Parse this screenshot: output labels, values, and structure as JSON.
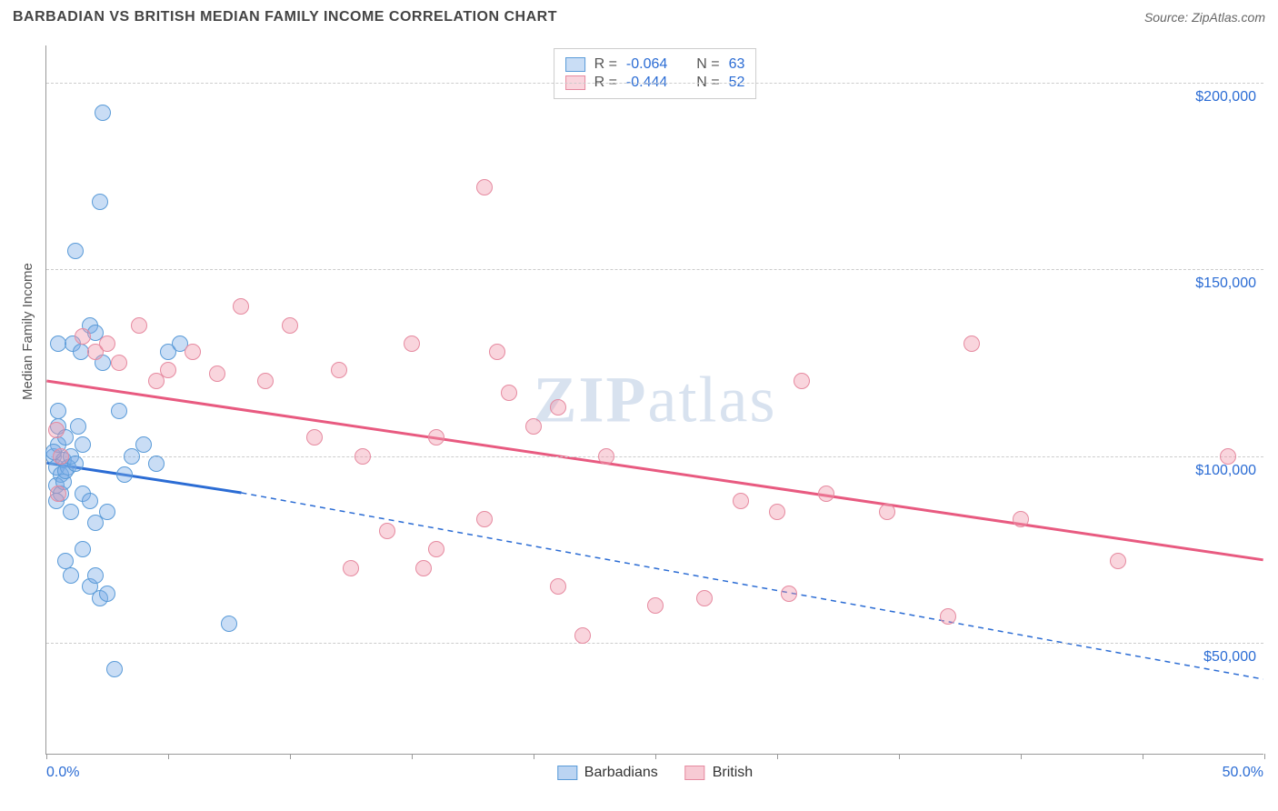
{
  "header": {
    "title": "BARBADIAN VS BRITISH MEDIAN FAMILY INCOME CORRELATION CHART",
    "source_label": "Source: ",
    "source_value": "ZipAtlas.com"
  },
  "watermark": {
    "zip": "ZIP",
    "atlas": "atlas"
  },
  "chart": {
    "type": "scatter",
    "ylabel": "Median Family Income",
    "xlim": [
      0,
      50
    ],
    "ylim": [
      20000,
      210000
    ],
    "x_start_label": "0.0%",
    "x_end_label": "50.0%",
    "yticks": [
      50000,
      100000,
      150000,
      200000
    ],
    "ytick_labels": [
      "$50,000",
      "$100,000",
      "$150,000",
      "$200,000"
    ],
    "xticks": [
      0,
      5,
      10,
      15,
      20,
      25,
      30,
      35,
      40,
      45,
      50
    ],
    "grid_color": "#cccccc",
    "background_color": "#ffffff",
    "axis_color": "#999999",
    "tick_label_color": "#2b6cd4",
    "marker_radius": 9,
    "series": [
      {
        "name": "Barbadians",
        "fill": "rgba(120,170,230,0.4)",
        "stroke": "#5a9bd8",
        "trend": {
          "x1": 0,
          "y1": 98000,
          "x2_solid": 8,
          "y2_solid": 90000,
          "x2": 50,
          "y2": 40000,
          "color": "#2b6cd4",
          "dash": "6,5",
          "width": 3
        },
        "stats": {
          "R": "-0.064",
          "N": "63"
        },
        "points": [
          [
            0.3,
            100000
          ],
          [
            0.4,
            97000
          ],
          [
            0.5,
            103000
          ],
          [
            0.6,
            95000
          ],
          [
            0.5,
            108000
          ],
          [
            0.4,
            92000
          ],
          [
            0.7,
            99000
          ],
          [
            0.8,
            105000
          ],
          [
            0.6,
            90000
          ],
          [
            0.5,
            112000
          ],
          [
            0.9,
            97000
          ],
          [
            0.4,
            88000
          ],
          [
            0.7,
            93000
          ],
          [
            0.3,
            101000
          ],
          [
            0.8,
            96000
          ],
          [
            1.0,
            100000
          ],
          [
            1.2,
            98000
          ],
          [
            1.5,
            103000
          ],
          [
            1.3,
            108000
          ],
          [
            1.1,
            130000
          ],
          [
            1.4,
            128000
          ],
          [
            1.8,
            135000
          ],
          [
            2.0,
            133000
          ],
          [
            2.2,
            168000
          ],
          [
            2.3,
            192000
          ],
          [
            2.3,
            125000
          ],
          [
            1.2,
            155000
          ],
          [
            1.5,
            90000
          ],
          [
            1.0,
            85000
          ],
          [
            1.8,
            88000
          ],
          [
            2.0,
            82000
          ],
          [
            2.5,
            85000
          ],
          [
            1.5,
            75000
          ],
          [
            1.0,
            68000
          ],
          [
            0.8,
            72000
          ],
          [
            1.8,
            65000
          ],
          [
            2.0,
            68000
          ],
          [
            2.2,
            62000
          ],
          [
            2.5,
            63000
          ],
          [
            0.5,
            130000
          ],
          [
            3.2,
            95000
          ],
          [
            3.5,
            100000
          ],
          [
            4.0,
            103000
          ],
          [
            4.5,
            98000
          ],
          [
            5.0,
            128000
          ],
          [
            5.5,
            130000
          ],
          [
            2.8,
            43000
          ],
          [
            7.5,
            55000
          ],
          [
            3.0,
            112000
          ]
        ]
      },
      {
        "name": "British",
        "fill": "rgba(240,150,170,0.4)",
        "stroke": "#e68aa0",
        "trend": {
          "x1": 0,
          "y1": 120000,
          "x2": 50,
          "y2": 72000,
          "color": "#e85a80",
          "width": 3
        },
        "stats": {
          "R": "-0.444",
          "N": "52"
        },
        "points": [
          [
            0.4,
            107000
          ],
          [
            0.5,
            90000
          ],
          [
            0.6,
            100000
          ],
          [
            1.5,
            132000
          ],
          [
            2.0,
            128000
          ],
          [
            2.5,
            130000
          ],
          [
            3.0,
            125000
          ],
          [
            3.8,
            135000
          ],
          [
            4.5,
            120000
          ],
          [
            5.0,
            123000
          ],
          [
            6.0,
            128000
          ],
          [
            7.0,
            122000
          ],
          [
            8.0,
            140000
          ],
          [
            9.0,
            120000
          ],
          [
            10.0,
            135000
          ],
          [
            11.0,
            105000
          ],
          [
            12.0,
            123000
          ],
          [
            13.0,
            100000
          ],
          [
            15.0,
            130000
          ],
          [
            16.0,
            105000
          ],
          [
            18.0,
            172000
          ],
          [
            18.5,
            128000
          ],
          [
            19.0,
            117000
          ],
          [
            20.0,
            108000
          ],
          [
            21.0,
            113000
          ],
          [
            23.0,
            100000
          ],
          [
            12.5,
            70000
          ],
          [
            14.0,
            80000
          ],
          [
            15.5,
            70000
          ],
          [
            16.0,
            75000
          ],
          [
            18.0,
            83000
          ],
          [
            21.0,
            65000
          ],
          [
            22.0,
            52000
          ],
          [
            25.0,
            60000
          ],
          [
            27.0,
            62000
          ],
          [
            28.5,
            88000
          ],
          [
            30.0,
            85000
          ],
          [
            30.5,
            63000
          ],
          [
            31.0,
            120000
          ],
          [
            32.0,
            90000
          ],
          [
            34.5,
            85000
          ],
          [
            37.0,
            57000
          ],
          [
            38.0,
            130000
          ],
          [
            40.0,
            83000
          ],
          [
            44.0,
            72000
          ],
          [
            48.5,
            100000
          ]
        ]
      }
    ]
  },
  "legend_top": {
    "R_label": "R =",
    "N_label": "N ="
  },
  "legend_bottom": [
    {
      "label": "Barbadians",
      "fill": "rgba(120,170,230,0.5)",
      "stroke": "#5a9bd8"
    },
    {
      "label": "British",
      "fill": "rgba(240,150,170,0.5)",
      "stroke": "#e68aa0"
    }
  ]
}
